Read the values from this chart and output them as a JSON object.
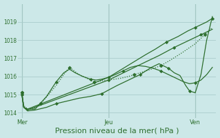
{
  "background_color": "#cce8e8",
  "grid_color": "#aacccc",
  "line_color": "#2d6e2d",
  "marker_color": "#2d6e2d",
  "xlabel": "Pression niveau de la mer( hPa )",
  "xlabel_fontsize": 8,
  "ylim": [
    1013.7,
    1020.0
  ],
  "yticks": [
    1014,
    1015,
    1016,
    1017,
    1018,
    1019
  ],
  "xtick_labels": [
    "Mer",
    "Jeu",
    "Ven"
  ],
  "xtick_positions": [
    0.0,
    0.455,
    0.91
  ],
  "series": [
    {
      "x": [
        0.0,
        0.01,
        0.03,
        0.06,
        0.1,
        0.14,
        0.18,
        0.22,
        0.25,
        0.27,
        0.3,
        0.34,
        0.38,
        0.455,
        0.52,
        0.56,
        0.59,
        0.62,
        0.65,
        0.68,
        0.73,
        0.78,
        0.84,
        0.91,
        0.96,
        1.0
      ],
      "y": [
        1015.1,
        1014.4,
        1014.2,
        1014.2,
        1014.5,
        1015.0,
        1015.5,
        1016.1,
        1016.5,
        1016.35,
        1016.1,
        1015.9,
        1015.7,
        1015.8,
        1015.9,
        1016.0,
        1016.1,
        1016.2,
        1016.3,
        1016.4,
        1016.6,
        1016.9,
        1017.3,
        1017.8,
        1018.3,
        1018.7
      ],
      "linestyle": ":",
      "marker": "D",
      "markersize": 2.5,
      "markevery": 4,
      "linewidth": 0.9
    },
    {
      "x": [
        0.0,
        0.01,
        0.03,
        0.07,
        0.13,
        0.18,
        0.22,
        0.25,
        0.28,
        0.32,
        0.36,
        0.39,
        0.42,
        0.455,
        0.49,
        0.53,
        0.57,
        0.61,
        0.65,
        0.69,
        0.73,
        0.77,
        0.81,
        0.85,
        0.88,
        0.91,
        0.94,
        0.97,
        1.0
      ],
      "y": [
        1015.1,
        1014.3,
        1014.2,
        1014.2,
        1014.9,
        1015.7,
        1016.2,
        1016.4,
        1016.2,
        1016.0,
        1015.85,
        1015.8,
        1015.85,
        1015.95,
        1016.1,
        1016.3,
        1016.5,
        1016.6,
        1016.55,
        1016.45,
        1016.3,
        1016.1,
        1015.9,
        1015.7,
        1015.6,
        1015.65,
        1015.8,
        1016.1,
        1016.5
      ],
      "linestyle": "-",
      "marker": "D",
      "markersize": 2.2,
      "markevery": 5,
      "linewidth": 0.9
    },
    {
      "x": [
        0.0,
        0.01,
        0.03,
        0.455,
        0.65,
        0.7,
        0.76,
        0.82,
        0.87,
        0.91,
        0.94,
        0.97,
        1.0
      ],
      "y": [
        1015.0,
        1014.3,
        1014.2,
        1015.95,
        1017.2,
        1017.5,
        1017.9,
        1018.2,
        1018.5,
        1018.7,
        1018.85,
        1019.0,
        1019.2
      ],
      "linestyle": "-",
      "marker": "D",
      "markersize": 2.2,
      "markevery": 3,
      "linewidth": 0.9
    },
    {
      "x": [
        0.0,
        0.01,
        0.03,
        0.455,
        0.65,
        0.72,
        0.8,
        0.88,
        0.91,
        0.94,
        0.97,
        1.0
      ],
      "y": [
        1015.0,
        1014.3,
        1014.15,
        1015.8,
        1016.8,
        1017.15,
        1017.6,
        1018.0,
        1018.15,
        1018.3,
        1018.45,
        1018.6
      ],
      "linestyle": "-",
      "marker": "D",
      "markersize": 2.2,
      "markevery": 3,
      "linewidth": 0.9
    },
    {
      "x": [
        0.0,
        0.01,
        0.03,
        0.07,
        0.13,
        0.18,
        0.22,
        0.26,
        0.3,
        0.36,
        0.42,
        0.455,
        0.5,
        0.54,
        0.58,
        0.62,
        0.65,
        0.68,
        0.72,
        0.74,
        0.77,
        0.8,
        0.82,
        0.83,
        0.86,
        0.88,
        0.91,
        0.94,
        0.97,
        1.0
      ],
      "y": [
        1015.1,
        1014.3,
        1014.1,
        1014.15,
        1014.3,
        1014.5,
        1014.6,
        1014.7,
        1014.8,
        1014.9,
        1015.05,
        1015.25,
        1015.5,
        1015.7,
        1015.9,
        1016.1,
        1016.3,
        1016.5,
        1016.7,
        1016.6,
        1016.45,
        1016.2,
        1016.1,
        1016.05,
        1015.5,
        1015.2,
        1015.1,
        1016.1,
        1018.0,
        1019.3
      ],
      "linestyle": "-",
      "marker": "D",
      "markersize": 2.2,
      "markevery": 5,
      "linewidth": 0.9
    }
  ]
}
